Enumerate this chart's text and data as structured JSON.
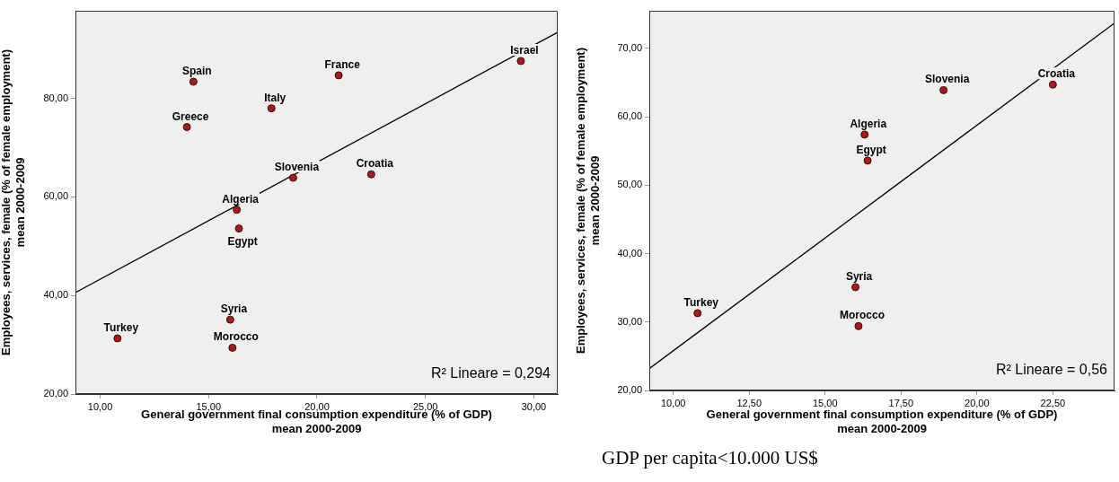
{
  "chart_data": [
    {
      "type": "scatter",
      "xlabel": "General government final consumption expenditure (% of GDP)\nmean 2000-2009",
      "ylabel": "Employees, services, female (% of female employment)\nmean 2000-2009",
      "xlim": [
        8.86,
        31.1
      ],
      "ylim": [
        20,
        97.8
      ],
      "xticks": [
        {
          "value": 10,
          "label": "10,00"
        },
        {
          "value": 15,
          "label": "15,00"
        },
        {
          "value": 20,
          "label": "20,00"
        },
        {
          "value": 25,
          "label": "25,00"
        },
        {
          "value": 30,
          "label": "30,00"
        }
      ],
      "yticks": [
        {
          "value": 20,
          "label": "20,00"
        },
        {
          "value": 40,
          "label": "40,00"
        },
        {
          "value": 60,
          "label": "60,00"
        },
        {
          "value": 80,
          "label": "80,00"
        }
      ],
      "grid": false,
      "series": [
        {
          "color": "#a51c1c",
          "marker": "circle",
          "x": [
            14.3,
            14.0,
            17.9,
            21.0,
            29.4,
            18.9,
            22.5,
            16.3,
            16.4,
            16.0,
            16.1,
            10.8
          ],
          "values": [
            83.4,
            74.2,
            78.0,
            84.7,
            87.6,
            63.9,
            64.6,
            57.4,
            53.6,
            35.1,
            29.4,
            31.3
          ]
        },
        {
          "type": "line",
          "color": "#000000",
          "marker": "none",
          "x": [
            8.86,
            31.09
          ],
          "values": [
            40.6,
            93.4
          ]
        }
      ],
      "annotations": [
        "R² Lineare = 0,294",
        {
          "text": "Spain",
          "x": 14.3,
          "y": 83.4
        },
        {
          "text": "Greece",
          "x": 14.0,
          "y": 74.2
        },
        {
          "text": "Italy",
          "x": 17.9,
          "y": 78.0
        },
        {
          "text": "France",
          "x": 21.0,
          "y": 84.7
        },
        {
          "text": "Israel",
          "x": 29.4,
          "y": 87.6
        },
        {
          "text": "Slovenia",
          "x": 18.9,
          "y": 63.9
        },
        {
          "text": "Croatia",
          "x": 22.5,
          "y": 64.6
        },
        {
          "text": "Algeria",
          "x": 16.3,
          "y": 57.4
        },
        {
          "text": "Egypt",
          "x": 16.4,
          "y": 53.6
        },
        {
          "text": "Syria",
          "x": 16.0,
          "y": 35.1
        },
        {
          "text": "Morocco",
          "x": 16.1,
          "y": 29.4
        },
        {
          "text": "Turkey",
          "x": 10.8,
          "y": 31.3
        }
      ]
    },
    {
      "type": "scatter",
      "xlabel": "General government final consumption expenditure (% of GDP)\nmean 2000-2009",
      "ylabel": "Employees, services, female (% of female employment)\nmean 2000-2009",
      "xlim": [
        9.21,
        24.53
      ],
      "ylim": [
        20,
        75.5
      ],
      "xticks": [
        {
          "value": 10,
          "label": "10,00"
        },
        {
          "value": 12.5,
          "label": "12,50"
        },
        {
          "value": 15,
          "label": "15,00"
        },
        {
          "value": 17.5,
          "label": "17,50"
        },
        {
          "value": 20,
          "label": "20,00"
        },
        {
          "value": 22.5,
          "label": "22,50"
        }
      ],
      "yticks": [
        {
          "value": 20,
          "label": "20,00"
        },
        {
          "value": 30,
          "label": "30,00"
        },
        {
          "value": 40,
          "label": "40,00"
        },
        {
          "value": 50,
          "label": "50,00"
        },
        {
          "value": 60,
          "label": "60,00"
        },
        {
          "value": 70,
          "label": "70,00"
        }
      ],
      "grid": false,
      "series": [
        {
          "color": "#a51c1c",
          "marker": "circle",
          "x": [
            18.9,
            22.5,
            16.3,
            16.4,
            16.0,
            16.1,
            10.8
          ],
          "values": [
            63.9,
            64.7,
            57.4,
            53.6,
            35.1,
            29.4,
            31.3
          ]
        },
        {
          "type": "line",
          "color": "#000000",
          "marker": "none",
          "x": [
            9.21,
            24.53
          ],
          "values": [
            23.2,
            73.7
          ]
        }
      ],
      "annotations": [
        "R² Lineare = 0,56",
        "GDP per capita<10.000 US$",
        {
          "text": "Slovenia",
          "x": 18.9,
          "y": 63.9
        },
        {
          "text": "Croatia",
          "x": 22.5,
          "y": 64.7
        },
        {
          "text": "Algeria",
          "x": 16.3,
          "y": 57.4
        },
        {
          "text": "Egypt",
          "x": 16.4,
          "y": 53.6
        },
        {
          "text": "Syria",
          "x": 16.0,
          "y": 35.1
        },
        {
          "text": "Morocco",
          "x": 16.1,
          "y": 29.4
        },
        {
          "text": "Turkey",
          "x": 10.8,
          "y": 31.3
        }
      ]
    }
  ]
}
